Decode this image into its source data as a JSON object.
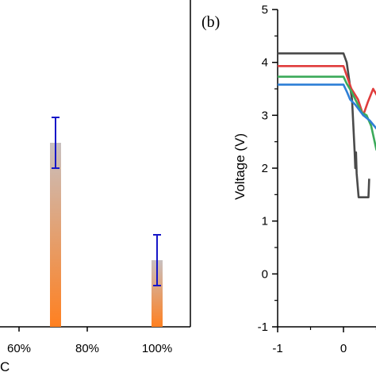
{
  "chart_data": [
    {
      "panel": "a",
      "type": "bar",
      "xlabel": "C",
      "x_tick_labels": [
        "60%",
        "80%",
        "100%"
      ],
      "bars": [
        {
          "x": "70%",
          "value": 0.58,
          "error_low": 0.5,
          "error_high": 0.66
        },
        {
          "x": "100%",
          "value": 0.21,
          "error_low": 0.13,
          "error_high": 0.29
        }
      ],
      "error_bar_color": "#1616c8",
      "bar_gradient": [
        "#c8c0c0",
        "#ff8020"
      ]
    },
    {
      "panel": "b",
      "label": "(b)",
      "type": "line",
      "ylabel": "Voltage (V)",
      "xlim": [
        -1,
        1.6
      ],
      "ylim": [
        -1,
        5
      ],
      "x_tick_labels": [
        "-1",
        "0"
      ],
      "y_tick_labels": [
        "5",
        "4",
        "3",
        "2",
        "1",
        "0",
        "-1"
      ],
      "series": [
        {
          "color": "#4a4a4a",
          "points": [
            [
              -1,
              4.17
            ],
            [
              0.0,
              4.17
            ],
            [
              0.05,
              4.0
            ],
            [
              0.1,
              3.55
            ],
            [
              0.13,
              3.3
            ],
            [
              0.17,
              2.3
            ],
            [
              0.18,
              2.0
            ],
            [
              0.19,
              2.3
            ],
            [
              0.2,
              1.9
            ],
            [
              0.23,
              1.45
            ],
            [
              0.38,
              1.45
            ],
            [
              0.39,
              1.8
            ]
          ]
        },
        {
          "color": "#e03c3c",
          "points": [
            [
              -1,
              3.93
            ],
            [
              0.0,
              3.93
            ],
            [
              0.05,
              3.75
            ],
            [
              0.12,
              3.5
            ],
            [
              0.22,
              3.3
            ],
            [
              0.3,
              3.0
            ],
            [
              0.37,
              3.25
            ],
            [
              0.45,
              3.5
            ],
            [
              0.52,
              3.35
            ],
            [
              0.58,
              3.1
            ]
          ]
        },
        {
          "color": "#3caa5a",
          "points": [
            [
              -1,
              3.73
            ],
            [
              0.0,
              3.73
            ],
            [
              0.05,
              3.6
            ],
            [
              0.12,
              3.45
            ],
            [
              0.2,
              3.25
            ],
            [
              0.28,
              3.05
            ],
            [
              0.35,
              3.0
            ],
            [
              0.42,
              2.8
            ],
            [
              0.5,
              2.35
            ],
            [
              0.58,
              2.2
            ]
          ]
        },
        {
          "color": "#2e7fd6",
          "points": [
            [
              -1,
              3.58
            ],
            [
              0.0,
              3.58
            ],
            [
              0.05,
              3.45
            ],
            [
              0.1,
              3.3
            ],
            [
              0.18,
              3.2
            ],
            [
              0.3,
              3.0
            ],
            [
              0.4,
              2.9
            ],
            [
              0.5,
              2.75
            ],
            [
              0.58,
              2.65
            ]
          ]
        }
      ]
    }
  ]
}
